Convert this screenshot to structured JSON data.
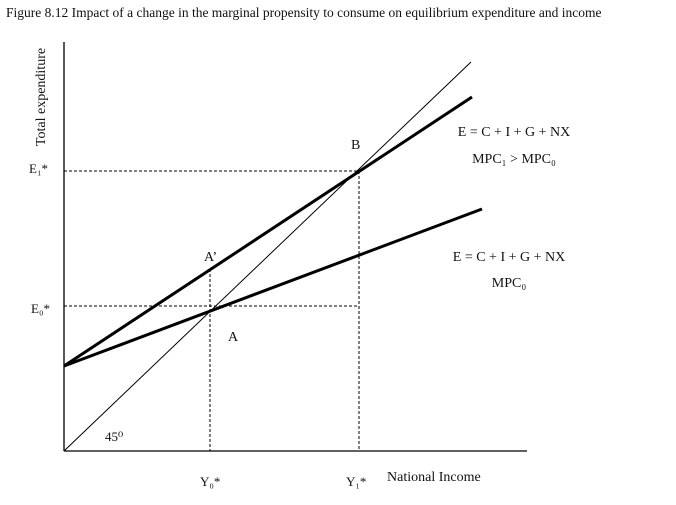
{
  "title": "Figure 8.12 Impact of a change in the marginal propensity to consume on equilibrium expenditure and income",
  "axes": {
    "y_label": "Total expenditure",
    "x_label": "National Income"
  },
  "ticks": {
    "e1": "E₁*",
    "e0": "E₀*",
    "y0": "Y₀*",
    "y1": "Y₁*"
  },
  "points": {
    "b": "B",
    "a_prime": "A’",
    "a": "A"
  },
  "angle_label": "45⁰",
  "lines": {
    "upper": {
      "equation": "E = C + I + G + NX",
      "mpc": "MPC₁ > MPC₀"
    },
    "lower": {
      "equation": "E = C + I + G + NX",
      "mpc": "MPC₀"
    }
  }
}
